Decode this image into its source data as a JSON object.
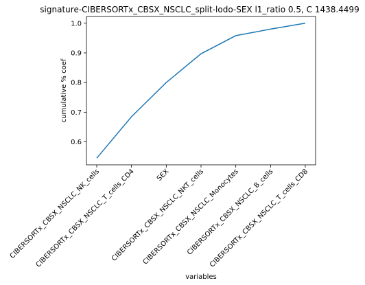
{
  "chart_data": {
    "type": "line",
    "title": "signature-CIBERSORTx_CBSX_NSCLC_split-lodo-SEX l1_ratio 0.5, C 1438.4499",
    "xlabel": "variables",
    "ylabel": "cumulative % coef",
    "categories": [
      "CIBERSORTx_CBSX_NSCLC_NK_cells",
      "CIBERSORTx_CBSX_NSCLC_T_cells_CD4",
      "SEX",
      "CIBERSORTx_CBSX_NSCLC_NKT_cells",
      "CIBERSORTx_CBSX_NSCLC_Monocytes",
      "CIBERSORTx_CBSX_NSCLC_B_cells",
      "CIBERSORTx_CBSX_NSCLC_T_cells_CD8"
    ],
    "series": [
      {
        "values": [
          0.545,
          0.685,
          0.8,
          0.897,
          0.958,
          0.98,
          1.0
        ]
      }
    ],
    "yticks": [
      0.6,
      0.7,
      0.8,
      0.9,
      1.0
    ],
    "ylim": [
      0.5226,
      1.0227
    ],
    "grid": false,
    "line_color": "#1f77b4"
  }
}
